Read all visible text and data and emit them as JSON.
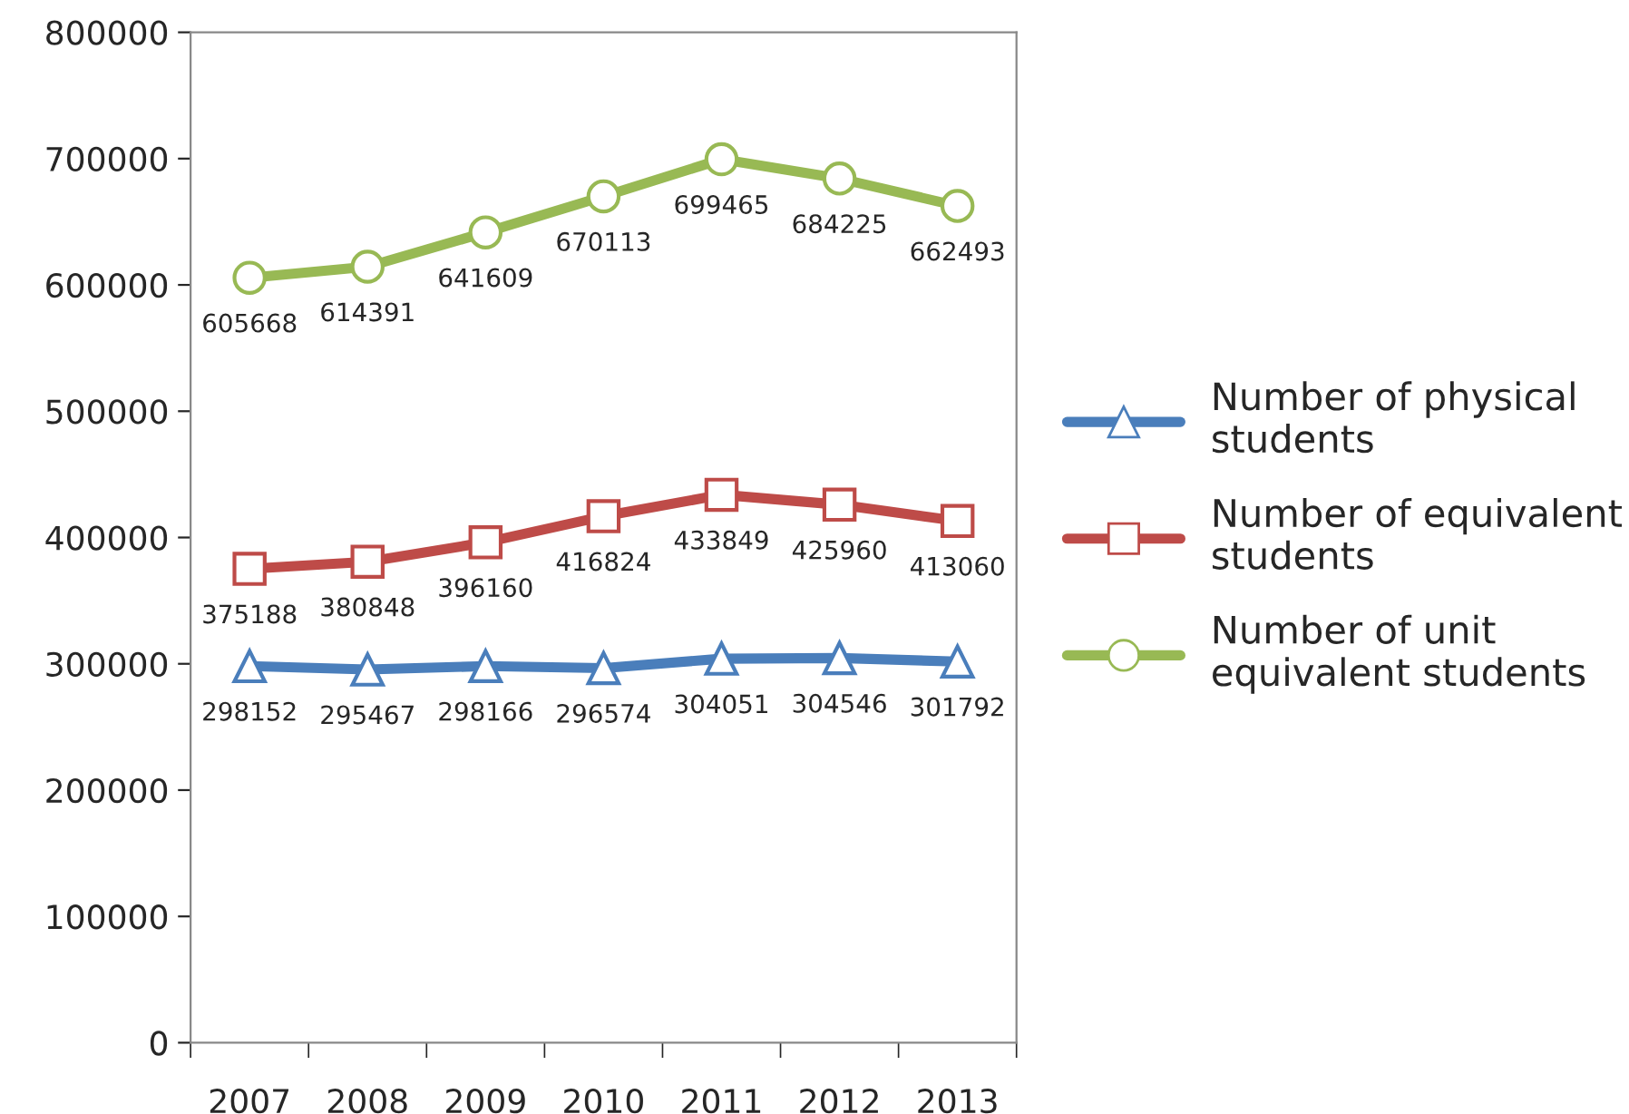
{
  "chart_data": {
    "type": "line",
    "categories": [
      "2007",
      "2008",
      "2009",
      "2010",
      "2011",
      "2012",
      "2013"
    ],
    "series": [
      {
        "name": "Number of physical students",
        "color": "#4a7ebb",
        "marker": "triangle",
        "values": [
          298152,
          295467,
          298166,
          296574,
          304051,
          304546,
          301792
        ]
      },
      {
        "name": "Number of equivalent students",
        "color": "#be4b48",
        "marker": "square",
        "values": [
          375188,
          380848,
          396160,
          416824,
          433849,
          425960,
          413060
        ]
      },
      {
        "name": "Number of unit equivalent students",
        "color": "#98b954",
        "marker": "circle",
        "values": [
          605668,
          614391,
          641609,
          670113,
          699465,
          684225,
          662493
        ]
      }
    ],
    "ylim": [
      0,
      800000
    ],
    "yticks": [
      0,
      100000,
      200000,
      300000,
      400000,
      500000,
      600000,
      700000,
      800000
    ],
    "data_labels": true,
    "legend": "right",
    "grid": false,
    "line_style": "solid"
  }
}
